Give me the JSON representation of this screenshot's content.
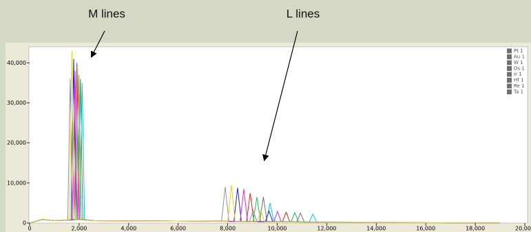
{
  "chart_data": {
    "type": "line",
    "annotations": [
      "M lines",
      "L lines"
    ],
    "xlim": [
      0,
      20000
    ],
    "ylim": [
      0,
      44000
    ],
    "xticks": [
      0,
      {
        "value": 2000,
        "label": "2,000"
      },
      {
        "value": 4000,
        "label": "4,000"
      },
      {
        "value": 6000,
        "label": "6,000"
      },
      {
        "value": 8000,
        "label": "8,000"
      },
      {
        "value": 10000,
        "label": "10,000"
      },
      {
        "value": 12000,
        "label": "12,000"
      },
      {
        "value": 14000,
        "label": "14,000"
      },
      {
        "value": 16000,
        "label": "16,000"
      },
      {
        "value": 18000,
        "label": "18,000"
      },
      {
        "value": 20000,
        "label": "20,000"
      }
    ],
    "yticks": [
      0,
      {
        "value": 10000,
        "label": "10,000"
      },
      {
        "value": 20000,
        "label": "20,000"
      },
      {
        "value": 30000,
        "label": "30,000"
      },
      {
        "value": 40000,
        "label": "40,000"
      }
    ],
    "series": [
      {
        "name": "Pt 1",
        "color": "#707070",
        "x": [
          0,
          500,
          1000,
          1950,
          2050,
          2150,
          2600,
          7000,
          9290,
          9440,
          9590,
          10790,
          10940,
          11090,
          14000,
          19000
        ],
        "values": [
          0,
          900,
          600,
          800,
          36000,
          900,
          600,
          500,
          400,
          6500,
          400,
          300,
          2500,
          300,
          100,
          50
        ]
      },
      {
        "name": "Au 1",
        "color": "#00c8e0",
        "x": [
          0,
          500,
          1000,
          2020,
          2120,
          2220,
          2600,
          7000,
          9560,
          9710,
          9860,
          11290,
          11440,
          11590,
          14000,
          19000
        ],
        "values": [
          0,
          800,
          600,
          800,
          35000,
          900,
          600,
          500,
          400,
          5000,
          400,
          300,
          2200,
          300,
          100,
          50
        ]
      },
      {
        "name": "W 1",
        "color": "#2020d0",
        "x": [
          0,
          500,
          1000,
          1680,
          1780,
          1880,
          2600,
          7000,
          8250,
          8400,
          8550,
          9520,
          9670,
          9820,
          14000,
          19000
        ],
        "values": [
          0,
          900,
          600,
          800,
          41000,
          900,
          600,
          500,
          400,
          8800,
          400,
          300,
          3000,
          300,
          100,
          50
        ]
      },
      {
        "name": "Os 1",
        "color": "#e02020",
        "x": [
          0,
          500,
          1000,
          1810,
          1910,
          2010,
          2600,
          7000,
          8760,
          8910,
          9060,
          10210,
          10360,
          10510,
          14000,
          19000
        ],
        "values": [
          0,
          900,
          600,
          800,
          40000,
          900,
          600,
          500,
          400,
          7500,
          400,
          300,
          2700,
          300,
          100,
          50
        ]
      },
      {
        "name": "Ir 1",
        "color": "#20c040",
        "x": [
          0,
          500,
          1000,
          1880,
          1980,
          2080,
          2600,
          7000,
          9030,
          9180,
          9330,
          10560,
          10710,
          10860,
          14000,
          19000
        ],
        "values": [
          0,
          900,
          600,
          800,
          37000,
          900,
          600,
          500,
          400,
          6500,
          400,
          300,
          2600,
          300,
          100,
          50
        ]
      },
      {
        "name": "Hf 1",
        "color": "#909090",
        "x": [
          0,
          500,
          1000,
          1540,
          1640,
          1740,
          2600,
          7000,
          7750,
          7900,
          8050,
          8880,
          9030,
          9180,
          14000,
          19000
        ],
        "values": [
          0,
          900,
          600,
          800,
          36000,
          900,
          600,
          500,
          400,
          9000,
          400,
          300,
          3200,
          300,
          100,
          50
        ]
      },
      {
        "name": "Re 1",
        "color": "#e020e0",
        "x": [
          0,
          500,
          1000,
          1740,
          1840,
          1940,
          2600,
          7000,
          8500,
          8650,
          8800,
          9860,
          10010,
          10160,
          14000,
          19000
        ],
        "values": [
          0,
          900,
          600,
          800,
          38000,
          900,
          600,
          500,
          400,
          8500,
          400,
          300,
          2900,
          300,
          100,
          50
        ]
      },
      {
        "name": "Ta 1",
        "color": "#e8d020",
        "x": [
          0,
          500,
          1000,
          1610,
          1710,
          1810,
          2600,
          7000,
          8000,
          8150,
          8300,
          9190,
          9340,
          9490,
          14000,
          19000
        ],
        "values": [
          0,
          900,
          600,
          800,
          43000,
          900,
          600,
          500,
          400,
          9500,
          400,
          300,
          3100,
          300,
          100,
          50
        ]
      }
    ]
  }
}
